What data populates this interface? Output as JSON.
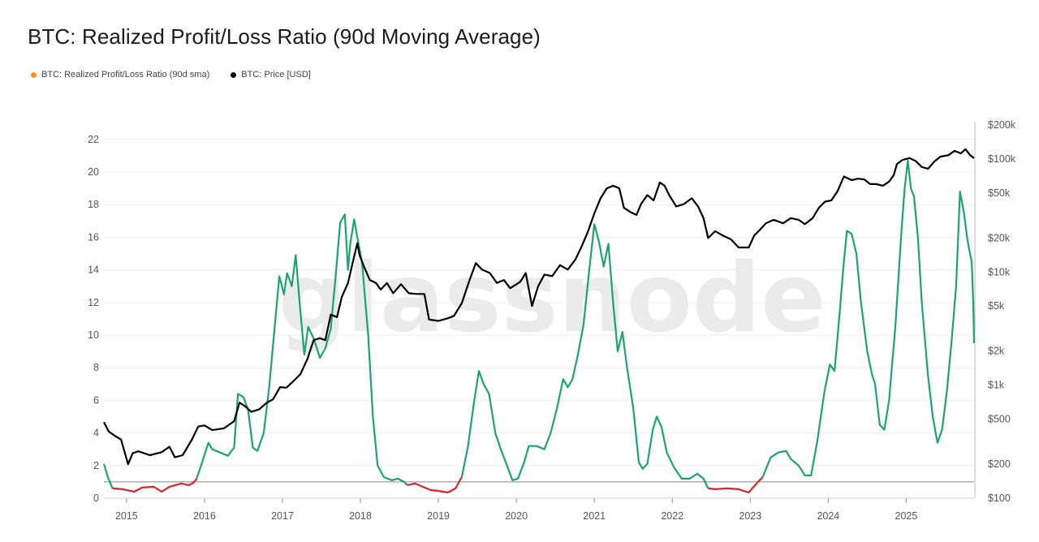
{
  "title": "BTC: Realized Profit/Loss Ratio (90d Moving Average)",
  "legend": [
    {
      "label": "BTC: Realized Profit/Loss Ratio (90d sma)",
      "color": "#f7931a"
    },
    {
      "label": "BTC: Price [USD]",
      "color": "#000000"
    }
  ],
  "watermark": "glassnode",
  "colors": {
    "ratio_above": "#1aa56f",
    "ratio_below": "#d62728",
    "price": "#000000",
    "baseline": "#888888"
  },
  "chart_data": {
    "type": "line",
    "x_ticks": [
      "2015",
      "2016",
      "2017",
      "2018",
      "2019",
      "2020",
      "2021",
      "2022",
      "2023",
      "2024",
      "2025"
    ],
    "x_range": [
      2014.71,
      2025.87
    ],
    "y_left": {
      "ticks": [
        "0",
        "2",
        "4",
        "6",
        "8",
        "10",
        "12",
        "14",
        "16",
        "18",
        "20",
        "22"
      ],
      "range": [
        0,
        22
      ],
      "baseline": 1
    },
    "y_right": {
      "ticks": [
        "$100",
        "$200",
        "$500",
        "$1k",
        "$2k",
        "$5k",
        "$10k",
        "$20k",
        "$50k",
        "$100k",
        "$200k"
      ],
      "values": [
        100,
        200,
        500,
        1000,
        2000,
        5000,
        10000,
        20000,
        50000,
        100000,
        200000
      ],
      "scale": "log"
    },
    "series": [
      {
        "name": "BTC: Realized Profit/Loss Ratio (90d sma)",
        "axis": "left",
        "points": [
          [
            2014.71,
            2.1
          ],
          [
            2014.76,
            1.3
          ],
          [
            2014.82,
            0.6
          ],
          [
            2014.95,
            0.55
          ],
          [
            2015.1,
            0.4
          ],
          [
            2015.2,
            0.65
          ],
          [
            2015.35,
            0.7
          ],
          [
            2015.45,
            0.4
          ],
          [
            2015.55,
            0.7
          ],
          [
            2015.7,
            0.9
          ],
          [
            2015.8,
            0.8
          ],
          [
            2015.86,
            0.95
          ],
          [
            2015.9,
            1.2
          ],
          [
            2015.97,
            2.2
          ],
          [
            2016.05,
            3.4
          ],
          [
            2016.1,
            3.0
          ],
          [
            2016.2,
            2.8
          ],
          [
            2016.3,
            2.6
          ],
          [
            2016.38,
            3.1
          ],
          [
            2016.43,
            6.4
          ],
          [
            2016.5,
            6.2
          ],
          [
            2016.56,
            5.4
          ],
          [
            2016.62,
            3.1
          ],
          [
            2016.68,
            2.9
          ],
          [
            2016.76,
            4.0
          ],
          [
            2016.83,
            6.8
          ],
          [
            2016.9,
            10.5
          ],
          [
            2016.96,
            13.6
          ],
          [
            2017.02,
            12.5
          ],
          [
            2017.06,
            13.8
          ],
          [
            2017.12,
            13.0
          ],
          [
            2017.17,
            14.9
          ],
          [
            2017.22,
            12.0
          ],
          [
            2017.28,
            8.8
          ],
          [
            2017.33,
            10.5
          ],
          [
            2017.4,
            9.8
          ],
          [
            2017.48,
            8.6
          ],
          [
            2017.55,
            9.2
          ],
          [
            2017.62,
            10.4
          ],
          [
            2017.68,
            13.5
          ],
          [
            2017.74,
            16.9
          ],
          [
            2017.8,
            17.4
          ],
          [
            2017.84,
            14.0
          ],
          [
            2017.87,
            15.6
          ],
          [
            2017.92,
            17.1
          ],
          [
            2017.96,
            16.0
          ],
          [
            2018.02,
            14.5
          ],
          [
            2018.1,
            10.0
          ],
          [
            2018.16,
            5.0
          ],
          [
            2018.22,
            2.0
          ],
          [
            2018.3,
            1.3
          ],
          [
            2018.4,
            1.1
          ],
          [
            2018.48,
            1.2
          ],
          [
            2018.56,
            1.0
          ],
          [
            2018.6,
            0.8
          ],
          [
            2018.7,
            0.9
          ],
          [
            2018.8,
            0.7
          ],
          [
            2018.9,
            0.5
          ],
          [
            2019.0,
            0.45
          ],
          [
            2019.12,
            0.35
          ],
          [
            2019.22,
            0.6
          ],
          [
            2019.3,
            1.3
          ],
          [
            2019.38,
            3.2
          ],
          [
            2019.46,
            6.0
          ],
          [
            2019.52,
            7.8
          ],
          [
            2019.58,
            7.0
          ],
          [
            2019.65,
            6.4
          ],
          [
            2019.73,
            4.0
          ],
          [
            2019.8,
            3.0
          ],
          [
            2019.88,
            2.0
          ],
          [
            2019.95,
            1.1
          ],
          [
            2020.02,
            1.2
          ],
          [
            2020.1,
            2.2
          ],
          [
            2020.16,
            3.2
          ],
          [
            2020.26,
            3.2
          ],
          [
            2020.36,
            3.0
          ],
          [
            2020.44,
            4.0
          ],
          [
            2020.52,
            5.5
          ],
          [
            2020.6,
            7.3
          ],
          [
            2020.66,
            6.8
          ],
          [
            2020.72,
            7.3
          ],
          [
            2020.78,
            8.6
          ],
          [
            2020.86,
            10.6
          ],
          [
            2020.93,
            13.8
          ],
          [
            2021.0,
            16.8
          ],
          [
            2021.06,
            15.7
          ],
          [
            2021.12,
            14.2
          ],
          [
            2021.18,
            15.6
          ],
          [
            2021.24,
            12.0
          ],
          [
            2021.3,
            9.0
          ],
          [
            2021.36,
            10.2
          ],
          [
            2021.42,
            8.0
          ],
          [
            2021.5,
            5.5
          ],
          [
            2021.57,
            2.2
          ],
          [
            2021.62,
            1.8
          ],
          [
            2021.68,
            2.1
          ],
          [
            2021.75,
            4.2
          ],
          [
            2021.8,
            5.0
          ],
          [
            2021.86,
            4.4
          ],
          [
            2021.93,
            2.8
          ],
          [
            2022.02,
            1.9
          ],
          [
            2022.12,
            1.2
          ],
          [
            2022.22,
            1.2
          ],
          [
            2022.32,
            1.5
          ],
          [
            2022.4,
            1.2
          ],
          [
            2022.46,
            0.6
          ],
          [
            2022.55,
            0.55
          ],
          [
            2022.7,
            0.6
          ],
          [
            2022.85,
            0.55
          ],
          [
            2022.98,
            0.35
          ],
          [
            2023.08,
            0.9
          ],
          [
            2023.16,
            1.3
          ],
          [
            2023.26,
            2.5
          ],
          [
            2023.36,
            2.8
          ],
          [
            2023.46,
            2.9
          ],
          [
            2023.52,
            2.4
          ],
          [
            2023.62,
            2.0
          ],
          [
            2023.7,
            1.4
          ],
          [
            2023.78,
            1.4
          ],
          [
            2023.86,
            3.5
          ],
          [
            2023.95,
            6.5
          ],
          [
            2024.02,
            8.2
          ],
          [
            2024.08,
            7.8
          ],
          [
            2024.14,
            11.0
          ],
          [
            2024.2,
            14.5
          ],
          [
            2024.24,
            16.4
          ],
          [
            2024.3,
            16.2
          ],
          [
            2024.36,
            15.0
          ],
          [
            2024.42,
            12.0
          ],
          [
            2024.5,
            9.0
          ],
          [
            2024.56,
            7.6
          ],
          [
            2024.6,
            7.0
          ],
          [
            2024.66,
            4.5
          ],
          [
            2024.72,
            4.2
          ],
          [
            2024.78,
            6.0
          ],
          [
            2024.86,
            10.5
          ],
          [
            2024.94,
            16.5
          ],
          [
            2024.98,
            19.0
          ],
          [
            2025.02,
            20.7
          ],
          [
            2025.06,
            19.0
          ],
          [
            2025.1,
            18.5
          ],
          [
            2025.15,
            16.0
          ],
          [
            2025.2,
            12.0
          ],
          [
            2025.28,
            7.5
          ],
          [
            2025.34,
            5.0
          ],
          [
            2025.4,
            3.4
          ],
          [
            2025.46,
            4.2
          ],
          [
            2025.52,
            6.5
          ],
          [
            2025.58,
            9.5
          ],
          [
            2025.64,
            13.0
          ],
          [
            2025.69,
            18.8
          ],
          [
            2025.74,
            17.5
          ],
          [
            2025.78,
            16.0
          ],
          [
            2025.81,
            15.2
          ],
          [
            2025.84,
            14.5
          ],
          [
            2025.86,
            12.0
          ],
          [
            2025.87,
            9.5
          ]
        ]
      },
      {
        "name": "BTC: Price [USD]",
        "axis": "right",
        "points": [
          [
            2014.71,
            470
          ],
          [
            2014.77,
            390
          ],
          [
            2014.84,
            360
          ],
          [
            2014.93,
            330
          ],
          [
            2015.02,
            200
          ],
          [
            2015.08,
            250
          ],
          [
            2015.15,
            260
          ],
          [
            2015.3,
            240
          ],
          [
            2015.45,
            255
          ],
          [
            2015.55,
            285
          ],
          [
            2015.62,
            230
          ],
          [
            2015.72,
            240
          ],
          [
            2015.84,
            330
          ],
          [
            2015.92,
            430
          ],
          [
            2016.0,
            440
          ],
          [
            2016.1,
            400
          ],
          [
            2016.25,
            415
          ],
          [
            2016.38,
            480
          ],
          [
            2016.45,
            700
          ],
          [
            2016.52,
            650
          ],
          [
            2016.6,
            580
          ],
          [
            2016.7,
            610
          ],
          [
            2016.8,
            700
          ],
          [
            2016.88,
            750
          ],
          [
            2016.97,
            960
          ],
          [
            2017.05,
            950
          ],
          [
            2017.15,
            1100
          ],
          [
            2017.23,
            1250
          ],
          [
            2017.32,
            1700
          ],
          [
            2017.4,
            2500
          ],
          [
            2017.48,
            2600
          ],
          [
            2017.55,
            2500
          ],
          [
            2017.62,
            4200
          ],
          [
            2017.7,
            4000
          ],
          [
            2017.76,
            6000
          ],
          [
            2017.84,
            8000
          ],
          [
            2017.9,
            12000
          ],
          [
            2017.96,
            18000
          ],
          [
            2017.99,
            14000
          ],
          [
            2018.05,
            11000
          ],
          [
            2018.12,
            8500
          ],
          [
            2018.2,
            8000
          ],
          [
            2018.26,
            7000
          ],
          [
            2018.34,
            8000
          ],
          [
            2018.42,
            6500
          ],
          [
            2018.52,
            7800
          ],
          [
            2018.62,
            6500
          ],
          [
            2018.72,
            6400
          ],
          [
            2018.82,
            6400
          ],
          [
            2018.88,
            3800
          ],
          [
            2019.0,
            3700
          ],
          [
            2019.12,
            3900
          ],
          [
            2019.2,
            4100
          ],
          [
            2019.3,
            5300
          ],
          [
            2019.4,
            8500
          ],
          [
            2019.48,
            12000
          ],
          [
            2019.56,
            10500
          ],
          [
            2019.66,
            9800
          ],
          [
            2019.75,
            8000
          ],
          [
            2019.84,
            8500
          ],
          [
            2019.92,
            7200
          ],
          [
            2020.05,
            8200
          ],
          [
            2020.12,
            9800
          ],
          [
            2020.2,
            5000
          ],
          [
            2020.28,
            7500
          ],
          [
            2020.36,
            9500
          ],
          [
            2020.46,
            9200
          ],
          [
            2020.56,
            11500
          ],
          [
            2020.66,
            10500
          ],
          [
            2020.76,
            13000
          ],
          [
            2020.84,
            17000
          ],
          [
            2020.92,
            23000
          ],
          [
            2021.0,
            33000
          ],
          [
            2021.08,
            45000
          ],
          [
            2021.16,
            55000
          ],
          [
            2021.24,
            58000
          ],
          [
            2021.32,
            55000
          ],
          [
            2021.38,
            37000
          ],
          [
            2021.46,
            34000
          ],
          [
            2021.54,
            32000
          ],
          [
            2021.6,
            40000
          ],
          [
            2021.68,
            48000
          ],
          [
            2021.76,
            43000
          ],
          [
            2021.84,
            62000
          ],
          [
            2021.9,
            58000
          ],
          [
            2021.96,
            48000
          ],
          [
            2022.05,
            38000
          ],
          [
            2022.15,
            40000
          ],
          [
            2022.25,
            45000
          ],
          [
            2022.33,
            38000
          ],
          [
            2022.4,
            30000
          ],
          [
            2022.46,
            20000
          ],
          [
            2022.55,
            23000
          ],
          [
            2022.65,
            21000
          ],
          [
            2022.75,
            19500
          ],
          [
            2022.85,
            16500
          ],
          [
            2022.98,
            16500
          ],
          [
            2023.05,
            21000
          ],
          [
            2023.12,
            23500
          ],
          [
            2023.2,
            27000
          ],
          [
            2023.3,
            29000
          ],
          [
            2023.42,
            27000
          ],
          [
            2023.52,
            30000
          ],
          [
            2023.62,
            29000
          ],
          [
            2023.7,
            26500
          ],
          [
            2023.8,
            30000
          ],
          [
            2023.88,
            37000
          ],
          [
            2023.96,
            42000
          ],
          [
            2024.04,
            43000
          ],
          [
            2024.12,
            52000
          ],
          [
            2024.2,
            70000
          ],
          [
            2024.3,
            65000
          ],
          [
            2024.38,
            67000
          ],
          [
            2024.46,
            66000
          ],
          [
            2024.54,
            60000
          ],
          [
            2024.62,
            60000
          ],
          [
            2024.7,
            58000
          ],
          [
            2024.78,
            63000
          ],
          [
            2024.84,
            72000
          ],
          [
            2024.88,
            90000
          ],
          [
            2024.95,
            98000
          ],
          [
            2025.04,
            102000
          ],
          [
            2025.12,
            96000
          ],
          [
            2025.2,
            85000
          ],
          [
            2025.28,
            82000
          ],
          [
            2025.36,
            95000
          ],
          [
            2025.44,
            105000
          ],
          [
            2025.54,
            108000
          ],
          [
            2025.62,
            118000
          ],
          [
            2025.7,
            112000
          ],
          [
            2025.76,
            122000
          ],
          [
            2025.82,
            108000
          ],
          [
            2025.87,
            102000
          ]
        ]
      }
    ]
  }
}
